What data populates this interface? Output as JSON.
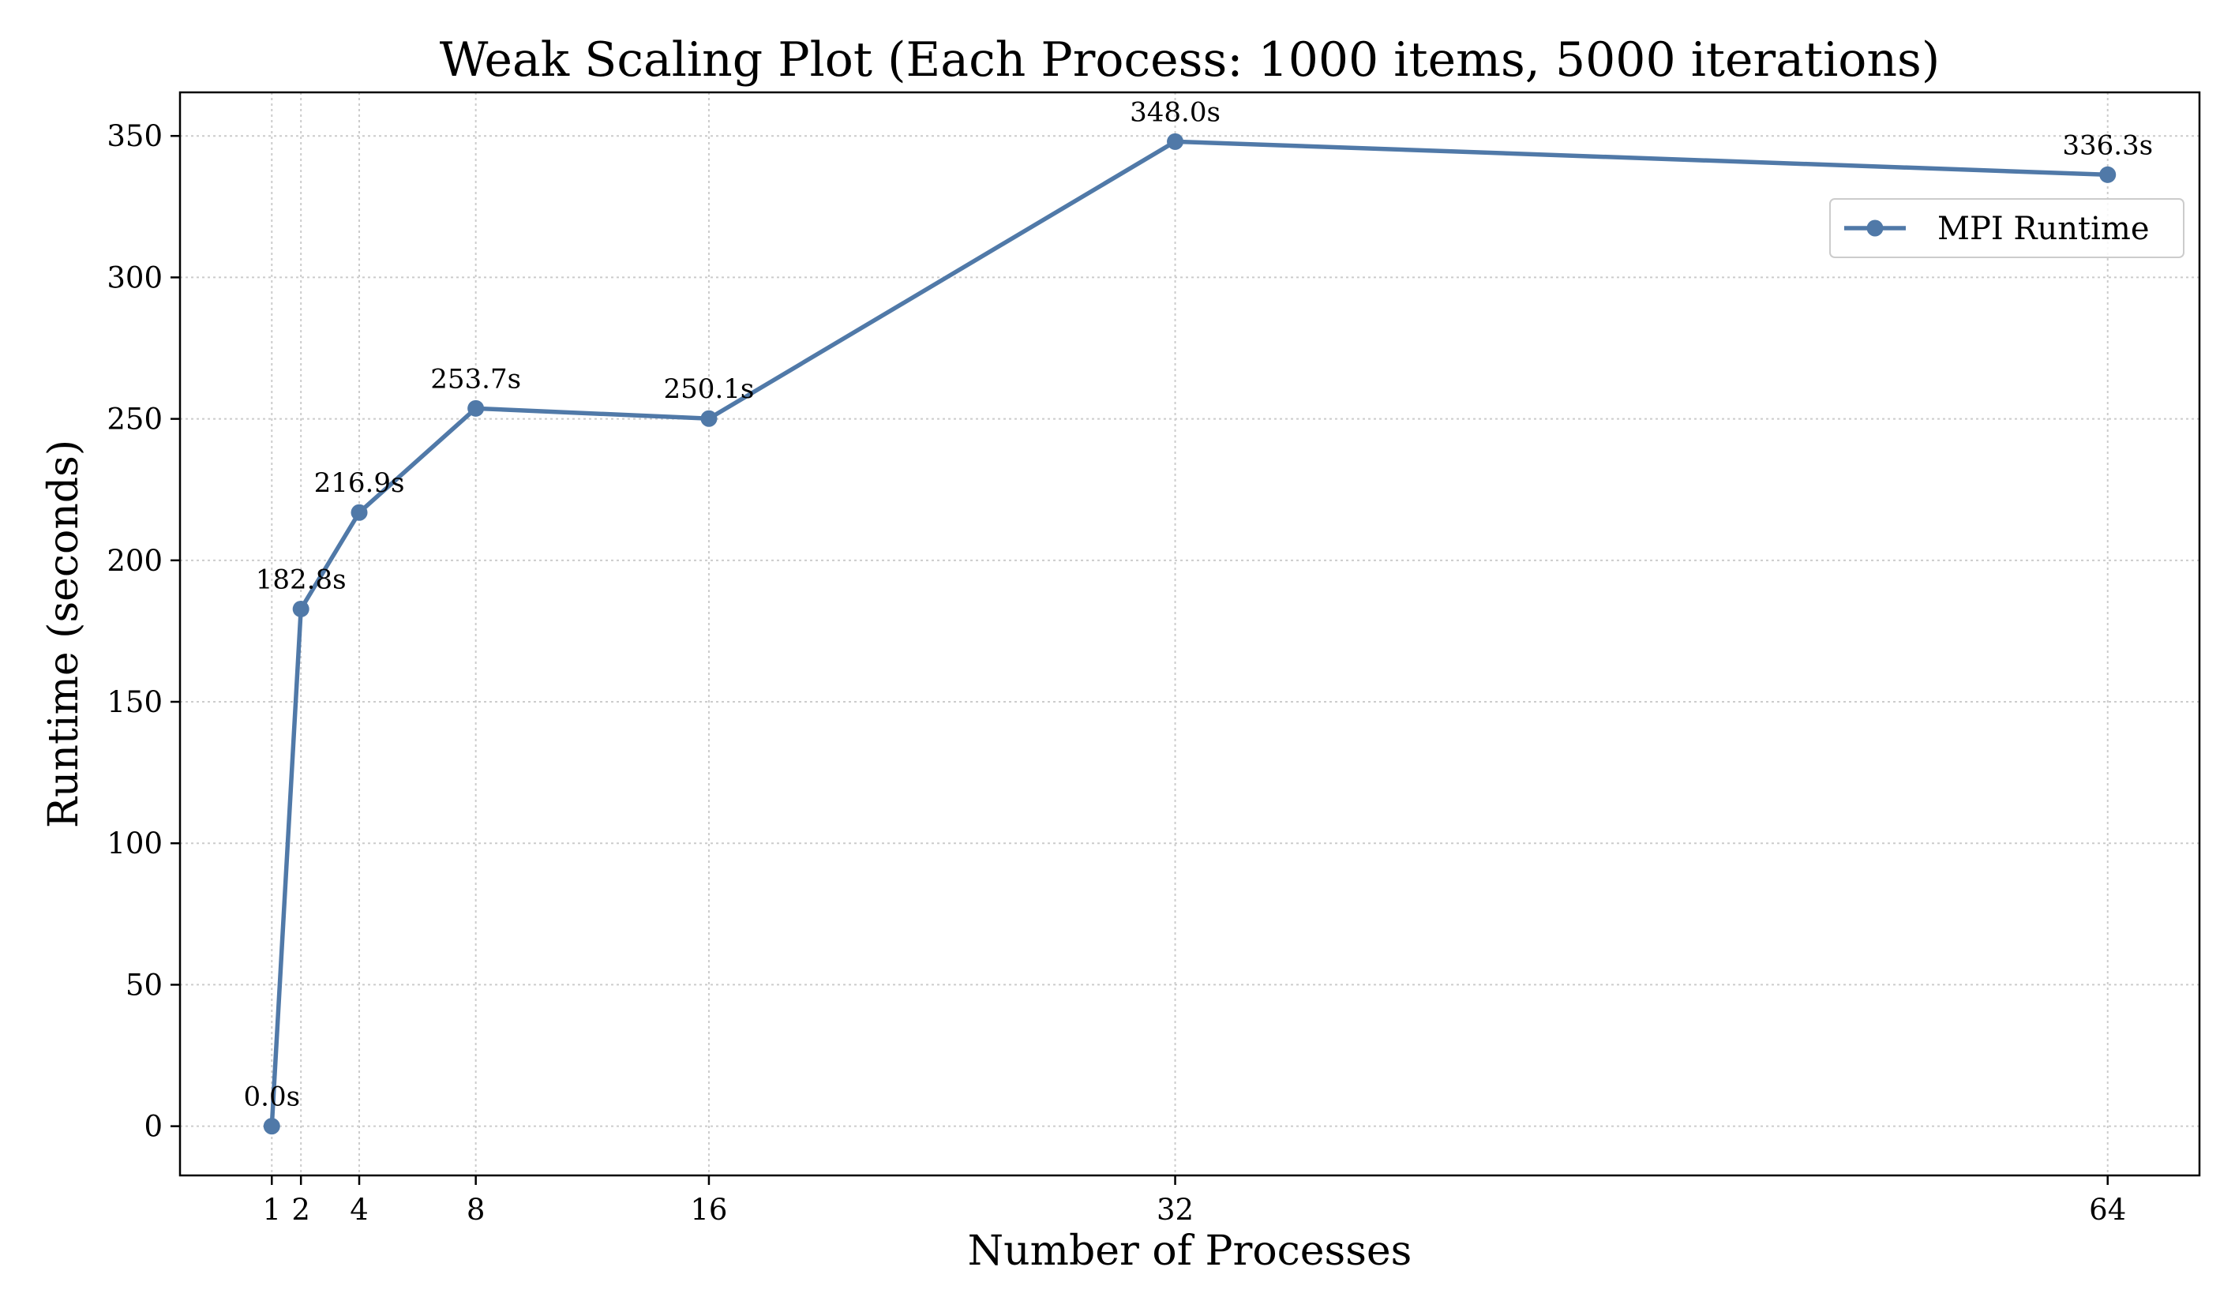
{
  "chart_data": {
    "type": "line",
    "title": "Weak Scaling Plot (Each Process: 1000 items, 5000 iterations)",
    "xlabel": "Number of Processes",
    "ylabel": "Runtime (seconds)",
    "x": [
      1,
      2,
      4,
      8,
      16,
      32,
      64
    ],
    "x_ticks": [
      "1",
      "2",
      "4",
      "8",
      "16",
      "32",
      "64"
    ],
    "y_ticks": [
      "0",
      "50",
      "100",
      "150",
      "200",
      "250",
      "300",
      "350"
    ],
    "xlim": [
      -2.15,
      67.15
    ],
    "ylim": [
      -17.4,
      365.4
    ],
    "grid": true,
    "legend_position": "upper-right",
    "color": "#5079a8",
    "series": [
      {
        "name": "MPI Runtime",
        "values": [
          0.0,
          182.8,
          216.9,
          253.7,
          250.1,
          348.0,
          336.3
        ],
        "labels": [
          "0.0s",
          "182.8s",
          "216.9s",
          "253.7s",
          "250.1s",
          "348.0s",
          "336.3s"
        ]
      }
    ]
  }
}
